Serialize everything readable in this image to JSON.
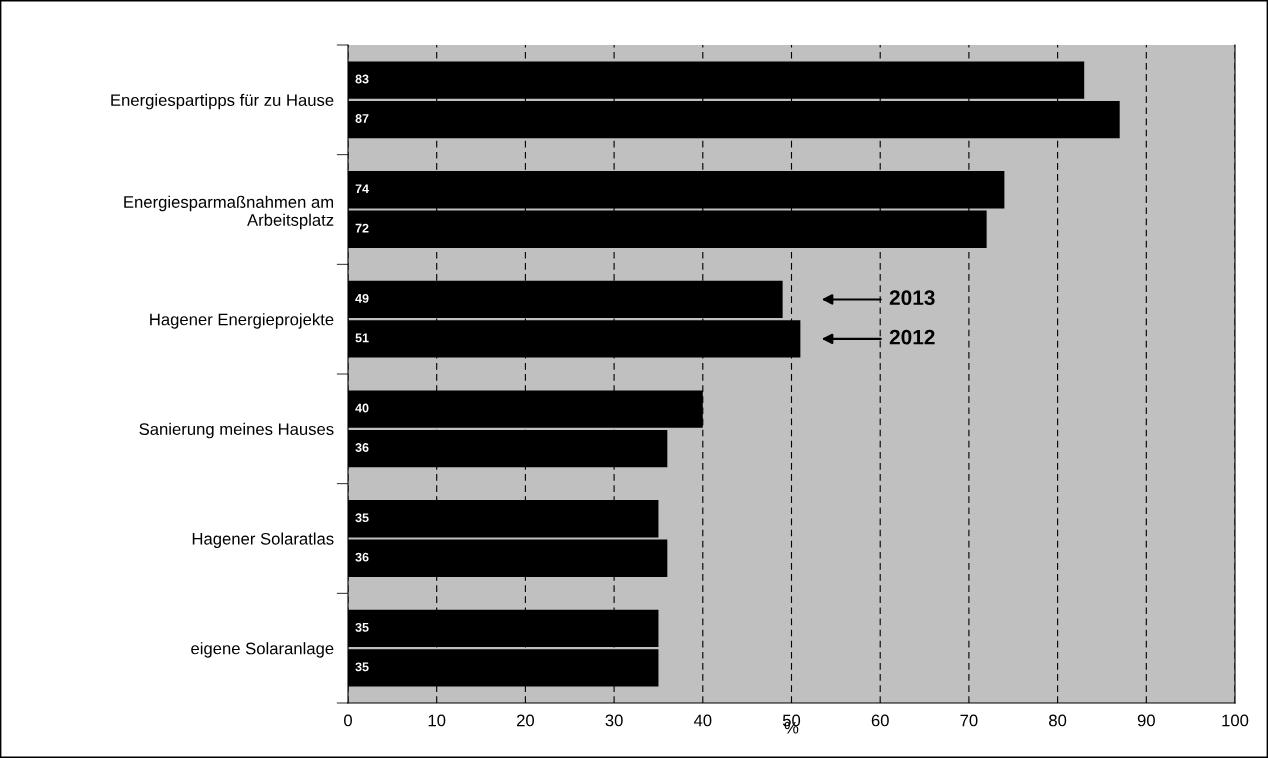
{
  "chart_data": {
    "type": "bar",
    "orientation": "horizontal",
    "xlabel": "%",
    "categories": [
      "Energiespartipps für zu Hause",
      "Energiesparmaßnahmen am\nArbeitsplatz",
      "Hagener Energieprojekte",
      "Sanierung meines Hauses",
      "Hagener Solaratlas",
      "eigene Solaranlage"
    ],
    "series": [
      {
        "name": "2013",
        "color": "#000000",
        "values": [
          83,
          74,
          49,
          40,
          35,
          35
        ]
      },
      {
        "name": "2012",
        "color": "#000000",
        "values": [
          87,
          72,
          51,
          36,
          36,
          35
        ]
      }
    ],
    "xlim": [
      0,
      100
    ],
    "xticks": [
      0,
      10,
      20,
      30,
      40,
      50,
      60,
      70,
      80,
      90,
      100
    ],
    "grid": "x",
    "data_labels": true,
    "legend": "center"
  }
}
